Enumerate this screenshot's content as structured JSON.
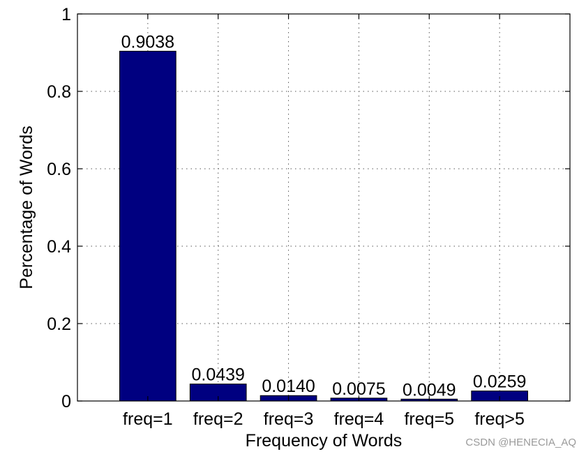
{
  "chart_data": {
    "type": "bar",
    "categories": [
      "freq=1",
      "freq=2",
      "freq=3",
      "freq=4",
      "freq=5",
      "freq>5"
    ],
    "values": [
      0.9038,
      0.0439,
      0.014,
      0.0075,
      0.0049,
      0.0259
    ],
    "data_labels": [
      "0.9038",
      "0.0439",
      "0.0140",
      "0.0075",
      "0.0049",
      "0.0259"
    ],
    "xlabel": "Frequency of Words",
    "ylabel": "Percentage of Words",
    "ylim": [
      0,
      1
    ],
    "yticks": [
      0,
      0.2,
      0.4,
      0.6,
      0.8,
      1
    ],
    "ytick_labels": [
      "0",
      "0.2",
      "0.4",
      "0.6",
      "0.8",
      "1"
    ],
    "grid": true,
    "bar_color": "#000080"
  },
  "watermark": "CSDN @HENECIA_AQ"
}
